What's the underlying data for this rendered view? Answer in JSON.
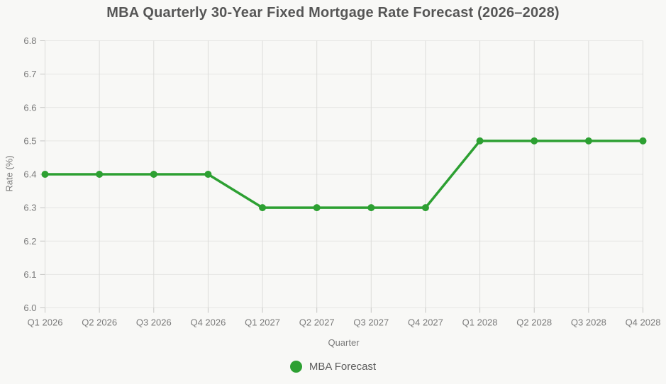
{
  "chart_data": {
    "type": "line",
    "title": "MBA Quarterly 30-Year Fixed Mortgage Rate Forecast (2026–2028)",
    "xlabel": "Quarter",
    "ylabel": "Rate (%)",
    "categories": [
      "Q1 2026",
      "Q2 2026",
      "Q3 2026",
      "Q4 2026",
      "Q1 2027",
      "Q2 2027",
      "Q3 2027",
      "Q4 2027",
      "Q1 2028",
      "Q2 2028",
      "Q3 2028",
      "Q4 2028"
    ],
    "series": [
      {
        "name": "MBA Forecast",
        "values": [
          6.4,
          6.4,
          6.4,
          6.4,
          6.3,
          6.3,
          6.3,
          6.3,
          6.5,
          6.5,
          6.5,
          6.5
        ],
        "color": "#2da032"
      }
    ],
    "ylim": [
      6.0,
      6.8
    ],
    "ytick_step": 0.1,
    "grid": true,
    "legend_position": "bottom",
    "colors": {
      "background": "#f8f8f6",
      "grid_horizontal": "#e6e6e4",
      "grid_vertical": "#dcdcda",
      "tick": "#c6c6c4",
      "title_text": "#565656",
      "axis_text": "#7b7b7b"
    }
  }
}
